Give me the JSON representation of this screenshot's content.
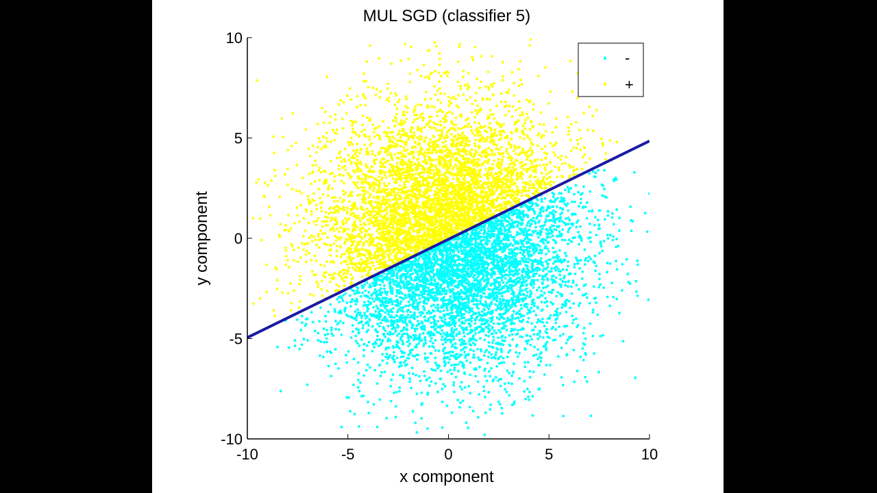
{
  "chart_data": {
    "type": "scatter",
    "title": "MUL SGD (classifier 5)",
    "xlabel": "x component",
    "ylabel": "y component",
    "xlim": [
      -10,
      10
    ],
    "ylim": [
      -10,
      10
    ],
    "x_ticks": [
      "-10",
      "-5",
      "0",
      "5",
      "10"
    ],
    "y_ticks": [
      "10",
      "5",
      "0",
      "-5",
      "-10"
    ],
    "grid": false,
    "legend_position": "top-right",
    "series": [
      {
        "name": "-",
        "color": "#00ffff",
        "description": "points below the decision boundary"
      },
      {
        "name": "+",
        "color": "#ffff00",
        "description": "points above the decision boundary"
      }
    ],
    "points": {
      "count": 9000,
      "center": [
        0,
        0
      ],
      "spread_sd": 3.2
    },
    "boundary": {
      "color": "#1a1aa6",
      "slope": 0.49,
      "intercept": -0.05,
      "x_range": [
        -10,
        10
      ]
    }
  }
}
